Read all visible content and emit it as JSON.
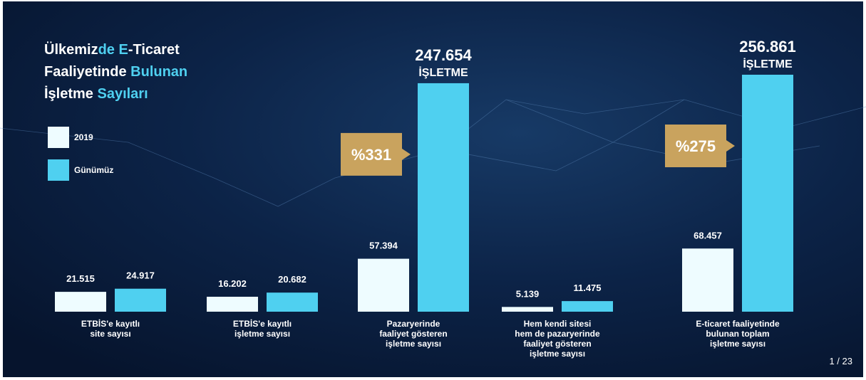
{
  "chart_data": {
    "type": "bar",
    "title_lines": [
      [
        {
          "text": "Ülkemiz",
          "color": "#ffffff"
        },
        {
          "text": "de E",
          "color": "#4fd0f0"
        },
        {
          "text": "-Ticaret",
          "color": "#ffffff"
        }
      ],
      [
        {
          "text": "Faaliyetinde ",
          "color": "#ffffff"
        },
        {
          "text": "Bulunan",
          "color": "#4fd0f0"
        }
      ],
      [
        {
          "text": "İşletme ",
          "color": "#ffffff"
        },
        {
          "text": "Sayıları",
          "color": "#4fd0f0"
        }
      ]
    ],
    "categories": [
      [
        "ETBİS'e kayıtlı",
        "site sayısı"
      ],
      [
        "ETBİS'e kayıtlı",
        "işletme sayısı"
      ],
      [
        "Pazaryerinde",
        "faaliyet gösteren",
        "işletme sayısı"
      ],
      [
        "Hem kendi sitesi",
        "hem de pazaryerinde",
        "faaliyet gösteren",
        "işletme sayısı"
      ],
      [
        "E-ticaret faaliyetinde",
        "bulunan toplam",
        "işletme sayısı"
      ]
    ],
    "series": [
      {
        "name": "2019",
        "color": "#eefcff",
        "values": [
          21515,
          16202,
          57394,
          5139,
          68457
        ],
        "value_labels": [
          "21.515",
          "16.202",
          "57.394",
          "5.139",
          "68.457"
        ]
      },
      {
        "name": "Günümüz",
        "color": "#4fd0f0",
        "values": [
          24917,
          20682,
          247654,
          11475,
          256861
        ],
        "value_labels": [
          "24.917",
          "20.682",
          "247.654",
          "11.475",
          "256.861"
        ]
      }
    ],
    "annotations": [
      {
        "text": "%331",
        "category": 2
      },
      {
        "text": "%275",
        "category": 4
      }
    ],
    "unit_label": "İŞLETME",
    "annotation_color": "#c9a35e"
  },
  "page_number": "1 / 23"
}
